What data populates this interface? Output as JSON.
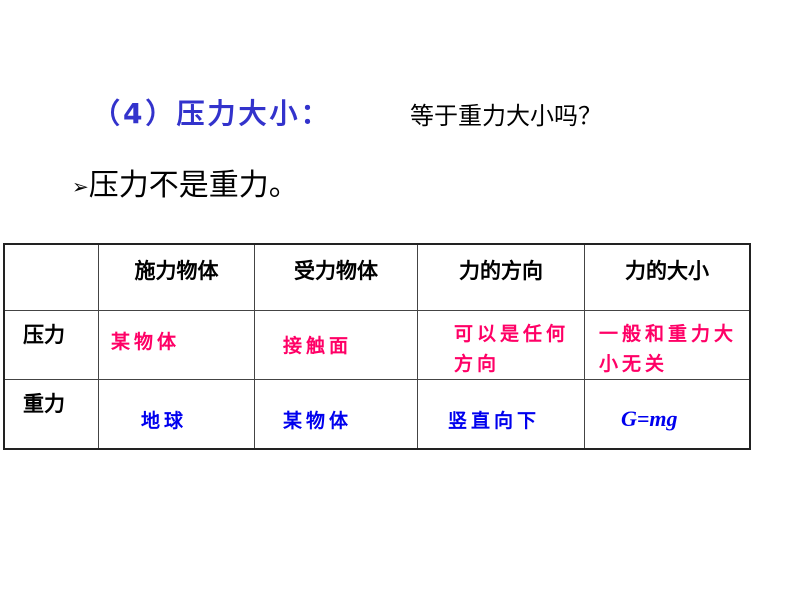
{
  "title": "（4）压力大小：",
  "question": "等于重力大小吗？",
  "bullet": {
    "icon": "arrow-bullet-icon",
    "text": "压力不是重力。"
  },
  "table": {
    "headers": [
      "",
      "施力物体",
      "受力物体",
      "力的方向",
      "力的大小"
    ],
    "rows": [
      {
        "label": "压力",
        "cells": [
          "某物体",
          "接触面",
          "可以是任何方向",
          "一般和重力大小无关"
        ],
        "color": "#ff0066"
      },
      {
        "label": "重力",
        "cells": [
          "地球",
          "某物体",
          "竖直向下",
          "G=mg"
        ],
        "color": "#0000ee"
      }
    ]
  }
}
